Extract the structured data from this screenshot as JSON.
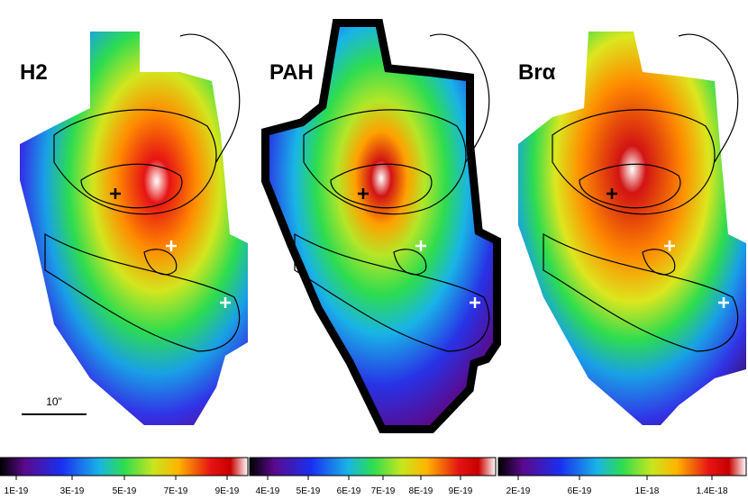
{
  "panels": [
    {
      "label": "H2",
      "colorbar_ticks": [
        "1E-19",
        "3E-19",
        "5E-19",
        "7E-19",
        "9E-19"
      ]
    },
    {
      "label": "PAH",
      "colorbar_ticks": [
        "4E-19",
        "5E-19",
        "6E-19",
        "7E-19",
        "8E-19",
        "9E-19"
      ]
    },
    {
      "label": "Brα",
      "colorbar_ticks": [
        "2E-19",
        "6E-19",
        "1E-18",
        "1.4E-18"
      ]
    }
  ],
  "scale_label": "10\""
}
